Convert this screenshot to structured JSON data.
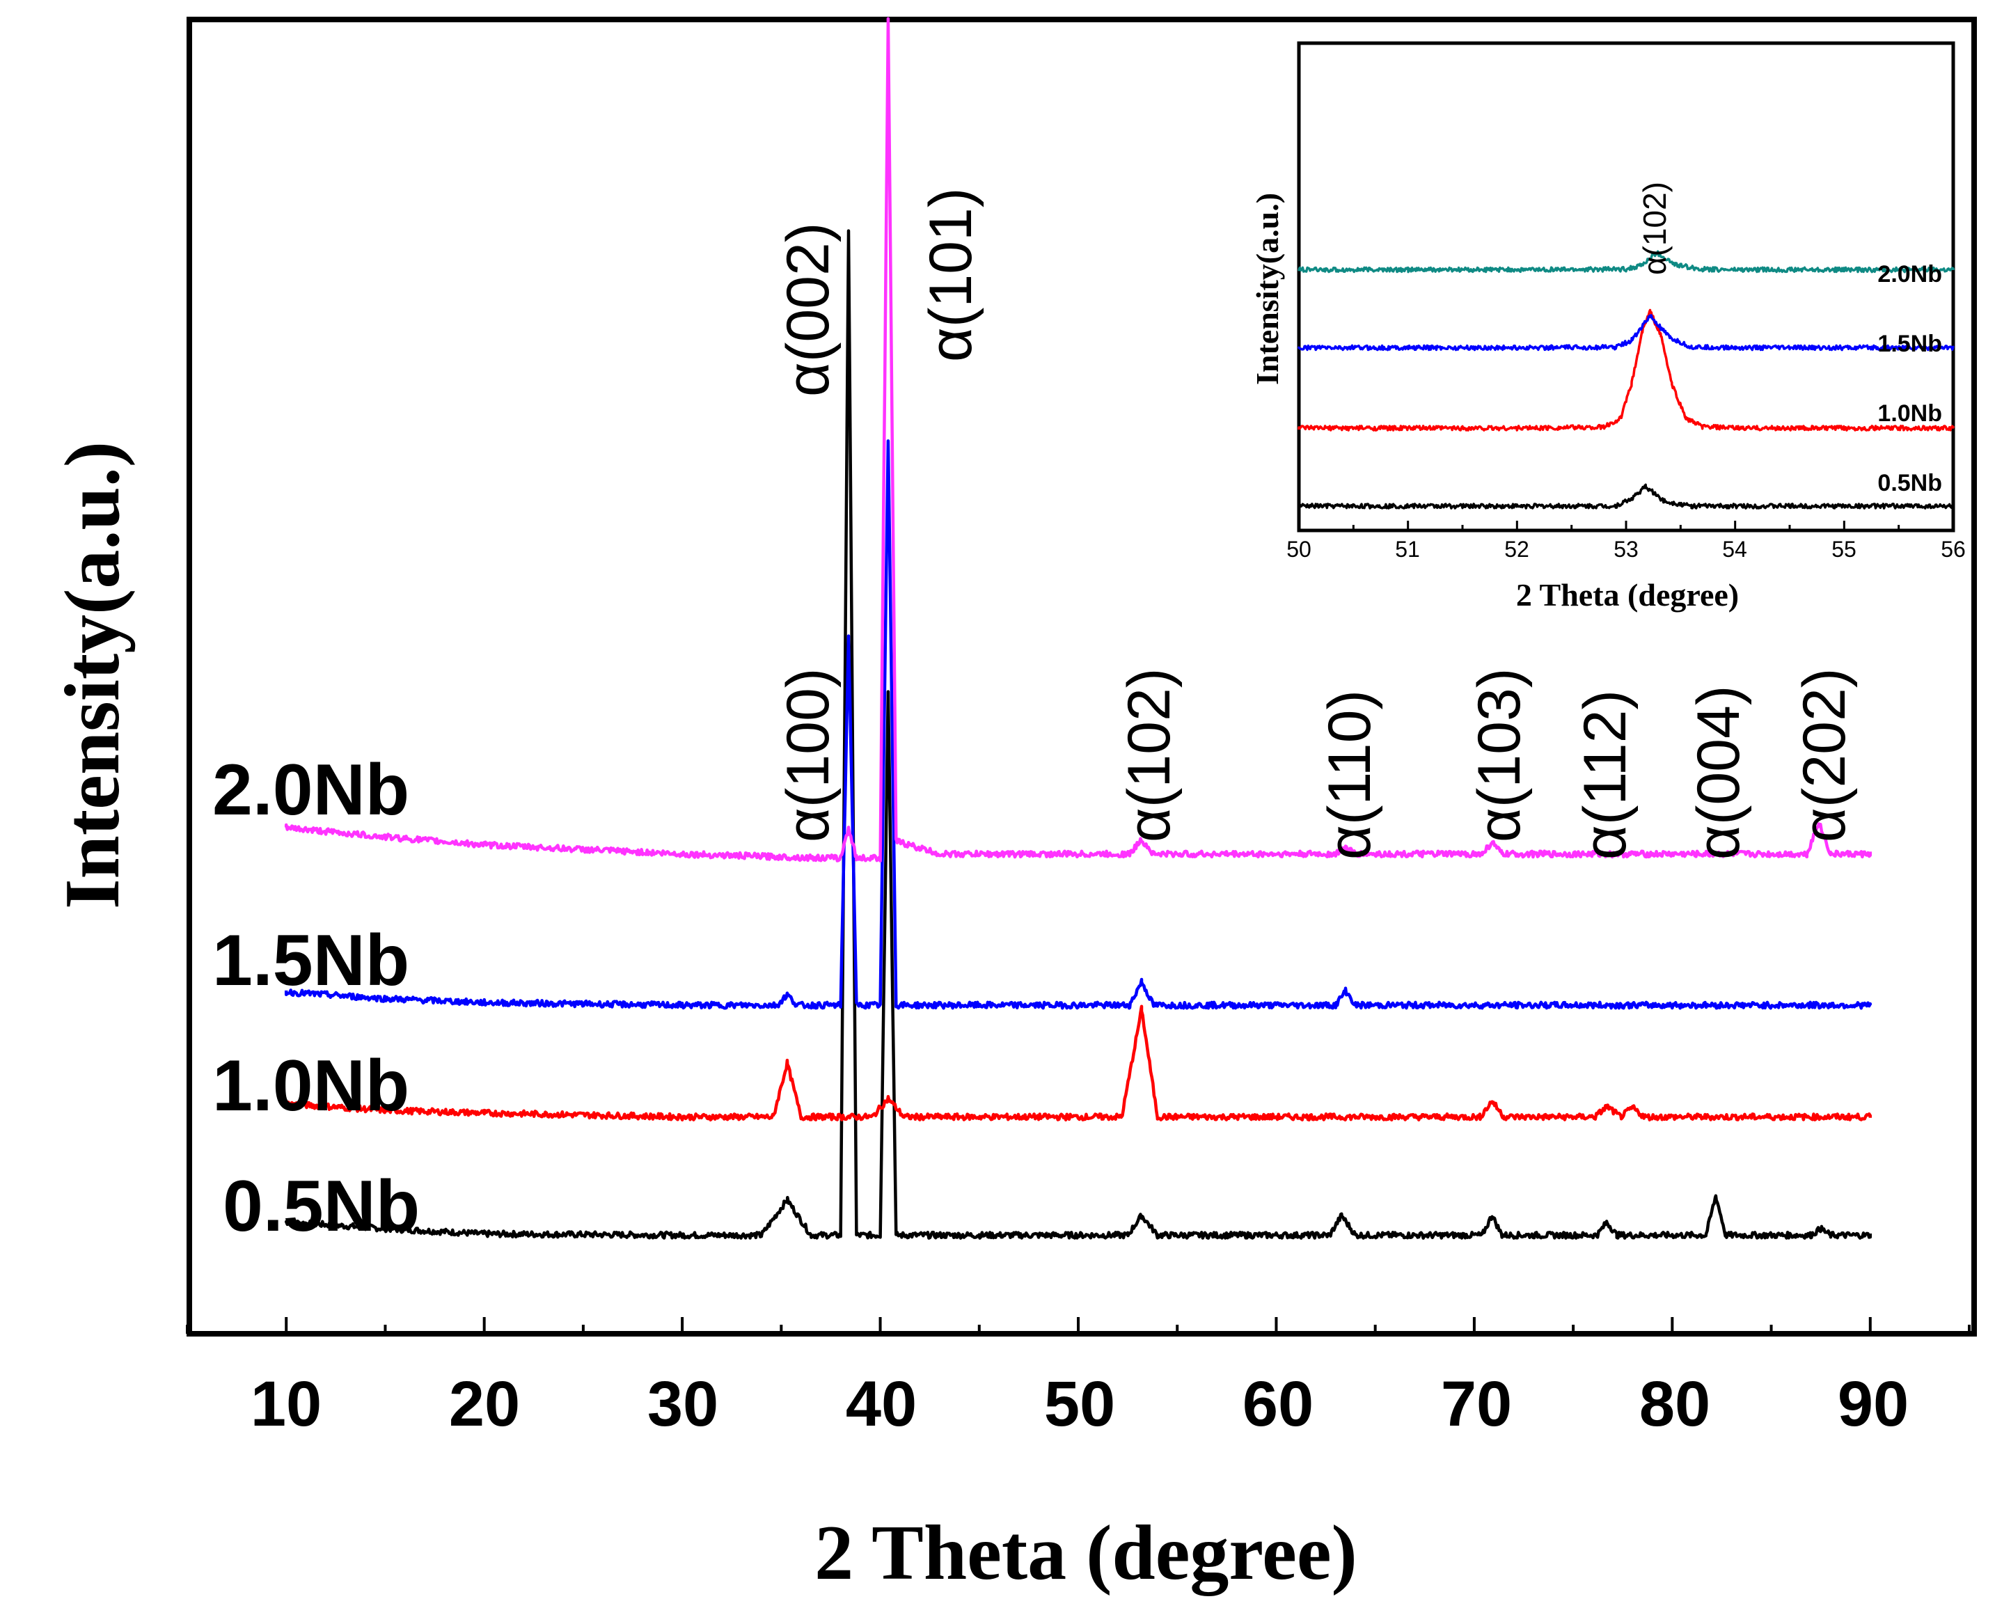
{
  "chart_data": [
    {
      "type": "line",
      "title": "",
      "xlabel": "2 Theta (degree)",
      "ylabel": "Intensity(a.u.)",
      "xlim": [
        5,
        95
      ],
      "ylim": [
        0,
        100
      ],
      "xticks": [
        10,
        20,
        30,
        40,
        50,
        60,
        70,
        80,
        90
      ],
      "xtick_labels": [
        "10",
        "20",
        "30",
        "40",
        "50",
        "60",
        "70",
        "80",
        "90"
      ],
      "grid": false,
      "series": [
        {
          "name": "0.5Nb",
          "label": "0.5Nb",
          "color": "#000000",
          "baseline": 7.5,
          "x": [
            10,
            15,
            20,
            30,
            34,
            35.3,
            36.5,
            38.0,
            38.4,
            38.8,
            40.0,
            40.4,
            40.8,
            45,
            52.5,
            53.2,
            54,
            62.7,
            63.3,
            64,
            70.4,
            70.9,
            71.4,
            76.2,
            76.7,
            77.2,
            81.7,
            82.2,
            82.7,
            87.0,
            87.5,
            88.0,
            90
          ],
          "y": [
            8.5,
            8.0,
            7.6,
            7.5,
            7.5,
            10.2,
            7.5,
            7.5,
            84.0,
            7.5,
            7.5,
            49.0,
            7.5,
            7.5,
            7.5,
            9.0,
            7.5,
            7.5,
            9.0,
            7.5,
            7.5,
            9.0,
            7.5,
            7.5,
            8.5,
            7.5,
            7.5,
            10.5,
            7.5,
            7.5,
            8.0,
            7.5,
            7.5
          ]
        },
        {
          "name": "1.0Nb",
          "label": "1.0Nb",
          "color": "#ff0000",
          "baseline": 16.5,
          "x": [
            10,
            15,
            20,
            30,
            34.6,
            35.3,
            36.0,
            39.6,
            40.4,
            41.2,
            52.2,
            53.2,
            54.0,
            70.3,
            70.9,
            71.5,
            76.1,
            76.7,
            77.4,
            78.0,
            78.6,
            90
          ],
          "y": [
            17.5,
            17.0,
            16.8,
            16.5,
            16.5,
            20.6,
            16.5,
            16.5,
            17.9,
            16.5,
            16.5,
            24.7,
            16.5,
            16.5,
            17.7,
            16.5,
            16.5,
            17.3,
            16.5,
            17.2,
            16.5,
            16.5
          ]
        },
        {
          "name": "1.5Nb",
          "label": "1.5Nb",
          "color": "#0000ff",
          "baseline": 25.0,
          "x": [
            10,
            15,
            20,
            30,
            34.8,
            35.3,
            35.8,
            38.0,
            38.4,
            38.8,
            40.0,
            40.4,
            40.8,
            52.6,
            53.2,
            53.8,
            63.0,
            63.5,
            64.0,
            90
          ],
          "y": [
            26.0,
            25.5,
            25.2,
            25.0,
            25.0,
            25.8,
            25.0,
            25.0,
            53.0,
            25.0,
            25.0,
            68.0,
            25.0,
            25.0,
            26.8,
            25.0,
            25.0,
            26.1,
            25.0,
            25.0
          ]
        },
        {
          "name": "2.0Nb",
          "label": "2.0Nb",
          "color": "#ff33ff",
          "baseline": 36.5,
          "x": [
            10,
            15,
            20,
            30,
            37,
            38.0,
            38.4,
            38.8,
            40.0,
            40.4,
            40.8,
            43,
            52.6,
            53.2,
            53.8,
            63.0,
            63.5,
            64.0,
            70.4,
            70.9,
            71.4,
            86.8,
            87.4,
            88.0,
            90
          ],
          "y": [
            38.5,
            37.8,
            37.2,
            36.5,
            36.2,
            36.2,
            38.5,
            36.2,
            36.2,
            100,
            37.5,
            36.5,
            36.5,
            37.6,
            36.5,
            36.5,
            37.0,
            36.5,
            36.5,
            37.4,
            36.5,
            36.5,
            38.9,
            36.5,
            36.5
          ]
        }
      ],
      "annotations": [
        {
          "text": "α(100)",
          "x": 35.3
        },
        {
          "text": "α(002)",
          "x": 38.4
        },
        {
          "text": "α(101)",
          "x": 40.4
        },
        {
          "text": "α(102)",
          "x": 53.2
        },
        {
          "text": "α(110)",
          "x": 63.3
        },
        {
          "text": "α(103)",
          "x": 70.9
        },
        {
          "text": "α(112)",
          "x": 76.7
        },
        {
          "text": "α(004)",
          "x": 82.2
        },
        {
          "text": "α(202)",
          "x": 87.4
        }
      ]
    },
    {
      "type": "line",
      "title": "",
      "xlabel": "2 Theta (degree)",
      "ylabel": "Intensity(a.u.)",
      "xlim": [
        50,
        56
      ],
      "ylim": [
        0,
        100
      ],
      "xticks": [
        50,
        51,
        52,
        53,
        54,
        55,
        56
      ],
      "xtick_labels": [
        "50",
        "51",
        "52",
        "53",
        "54",
        "55",
        "56"
      ],
      "grid": false,
      "series": [
        {
          "name": "0.5Nb",
          "label": "0.5Nb",
          "color": "#000000",
          "x": [
            50,
            51,
            52,
            52.9,
            53.05,
            53.18,
            53.35,
            53.6,
            54,
            55,
            56
          ],
          "y": [
            5.0,
            5.0,
            5.0,
            5.0,
            6.5,
            9.0,
            6.0,
            5.0,
            5.0,
            5.0,
            5.0
          ]
        },
        {
          "name": "1.0Nb",
          "label": "1.0Nb",
          "color": "#ff0000",
          "x": [
            50,
            51,
            52,
            52.8,
            52.95,
            53.05,
            53.15,
            53.22,
            53.32,
            53.42,
            53.55,
            53.7,
            54,
            55,
            56
          ],
          "y": [
            21.0,
            21.0,
            21.0,
            21.2,
            23.0,
            30.0,
            41.0,
            45.0,
            40.0,
            30.0,
            23.0,
            21.3,
            21.0,
            21.0,
            21.0
          ]
        },
        {
          "name": "1.5Nb",
          "label": "1.5Nb",
          "color": "#0000ff",
          "x": [
            50,
            51,
            52,
            52.9,
            53.05,
            53.22,
            53.4,
            53.6,
            54,
            55,
            56
          ],
          "y": [
            37.5,
            37.5,
            37.5,
            37.6,
            39.0,
            44.0,
            39.5,
            37.6,
            37.5,
            37.5,
            37.5
          ]
        },
        {
          "name": "2.0Nb",
          "label": "2.0Nb",
          "color": "#0f8a84",
          "x": [
            50,
            51,
            52,
            53.0,
            53.15,
            53.28,
            53.45,
            53.7,
            54,
            55,
            56
          ],
          "y": [
            53.5,
            53.5,
            53.5,
            53.6,
            54.5,
            57.0,
            54.5,
            53.6,
            53.5,
            53.5,
            53.5
          ]
        }
      ],
      "annotations": [
        {
          "text": "α(102)",
          "x": 53.22
        }
      ]
    }
  ]
}
